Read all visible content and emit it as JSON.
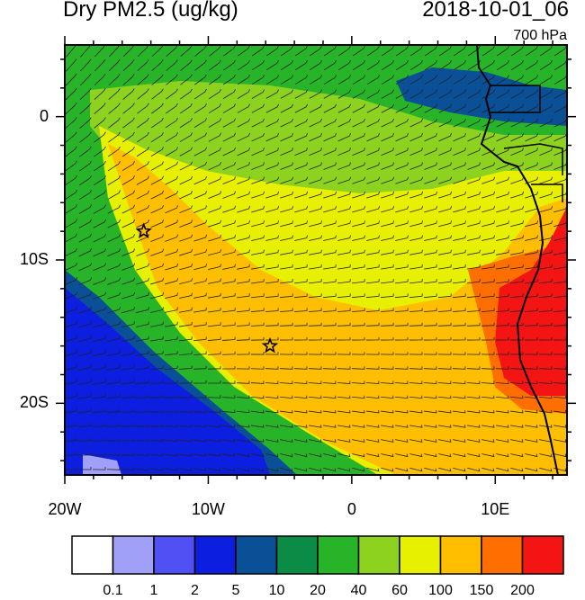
{
  "header": {
    "title": "Dry PM2.5 (ug/kg)",
    "datetime": "2018-10-01_06",
    "level": "700 hPa"
  },
  "map": {
    "lon_range": [
      -20,
      15
    ],
    "lat_range": [
      -25,
      5
    ],
    "x_ticks": [
      {
        "lon": -20,
        "label": "20W"
      },
      {
        "lon": -10,
        "label": "10W"
      },
      {
        "lon": 0,
        "label": "0"
      },
      {
        "lon": 10,
        "label": "10E"
      }
    ],
    "y_ticks": [
      {
        "lat": 0,
        "label": "0"
      },
      {
        "lat": -10,
        "label": "10S"
      },
      {
        "lat": -20,
        "label": "20S"
      }
    ],
    "stars": [
      {
        "lon": -14.5,
        "lat": -8.0,
        "name": "star-marker-ascension"
      },
      {
        "lon": -5.7,
        "lat": -16.0,
        "name": "star-marker-st-helena"
      }
    ]
  },
  "colorbar": {
    "colors": [
      "#ffffff",
      "#a0a0f8",
      "#5050f5",
      "#0c1ee0",
      "#0a5096",
      "#0a8c46",
      "#28b428",
      "#8cd21e",
      "#e6f000",
      "#ffbe00",
      "#ff6e00",
      "#f51414"
    ],
    "labels": [
      "0.1",
      "1",
      "2",
      "5",
      "10",
      "20",
      "40",
      "60",
      "100",
      "150",
      "200"
    ]
  }
}
